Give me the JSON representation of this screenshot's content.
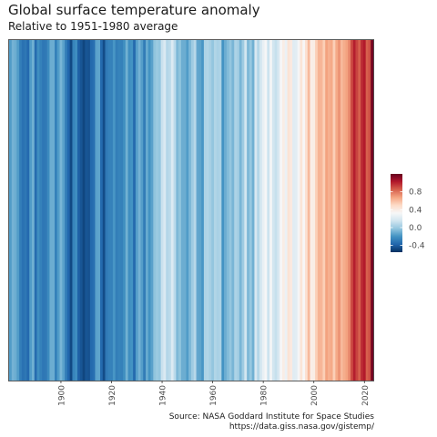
{
  "chart_data": {
    "type": "heatmap",
    "title": "Global surface temperature anomaly",
    "subtitle": "Relative to 1951-1980 average",
    "years": [
      1880,
      2023
    ],
    "x_ticks": [
      "1900",
      "1920",
      "1940",
      "1960",
      "1980",
      "2000",
      "2020"
    ],
    "x_tick_values": [
      1900,
      1920,
      1940,
      1960,
      1980,
      2000,
      2020
    ],
    "values": [
      -0.17,
      -0.09,
      -0.11,
      -0.17,
      -0.28,
      -0.33,
      -0.31,
      -0.36,
      -0.17,
      -0.1,
      -0.35,
      -0.22,
      -0.27,
      -0.31,
      -0.3,
      -0.23,
      -0.11,
      -0.11,
      -0.27,
      -0.17,
      -0.08,
      -0.15,
      -0.28,
      -0.37,
      -0.47,
      -0.26,
      -0.22,
      -0.39,
      -0.43,
      -0.48,
      -0.43,
      -0.44,
      -0.36,
      -0.34,
      -0.15,
      -0.14,
      -0.36,
      -0.46,
      -0.3,
      -0.27,
      -0.27,
      -0.19,
      -0.28,
      -0.26,
      -0.27,
      -0.22,
      -0.1,
      -0.22,
      -0.2,
      -0.36,
      -0.16,
      -0.09,
      -0.16,
      -0.29,
      -0.12,
      -0.2,
      -0.15,
      -0.03,
      0.0,
      -0.02,
      0.13,
      0.19,
      0.07,
      0.09,
      0.2,
      0.09,
      -0.07,
      -0.03,
      -0.11,
      -0.11,
      -0.17,
      -0.07,
      0.01,
      0.08,
      -0.13,
      -0.14,
      -0.19,
      0.05,
      0.06,
      0.03,
      -0.02,
      0.06,
      0.04,
      0.05,
      -0.2,
      -0.11,
      -0.06,
      -0.02,
      -0.08,
      0.05,
      0.03,
      -0.08,
      0.01,
      0.16,
      -0.07,
      -0.01,
      -0.1,
      0.18,
      0.07,
      0.16,
      0.26,
      0.32,
      0.14,
      0.31,
      0.16,
      0.12,
      0.18,
      0.32,
      0.39,
      0.27,
      0.45,
      0.41,
      0.22,
      0.23,
      0.31,
      0.44,
      0.33,
      0.46,
      0.61,
      0.38,
      0.39,
      0.54,
      0.63,
      0.62,
      0.54,
      0.68,
      0.64,
      0.66,
      0.54,
      0.66,
      0.72,
      0.61,
      0.65,
      0.68,
      0.75,
      0.9,
      1.01,
      0.92,
      0.85,
      0.98,
      1.02,
      0.85,
      0.89,
      1.17
    ],
    "legend": {
      "placement": "right",
      "range": [
        -0.55,
        1.2
      ],
      "tick_labels": [
        "0.8",
        "0.4",
        "0.0",
        "-0.4"
      ],
      "tick_values": [
        0.8,
        0.4,
        0.0,
        -0.4
      ]
    },
    "colors": [
      "#053061",
      "#2166ac",
      "#4393c3",
      "#92c5de",
      "#d1e5f0",
      "#f7f7f7",
      "#fddbc7",
      "#f4a582",
      "#d6604d",
      "#b2182b",
      "#67001f"
    ],
    "grid": false
  },
  "caption": {
    "source": "Source: NASA Goddard Institute for Space Studies",
    "url": "https://data.giss.nasa.gov/gistemp/"
  }
}
